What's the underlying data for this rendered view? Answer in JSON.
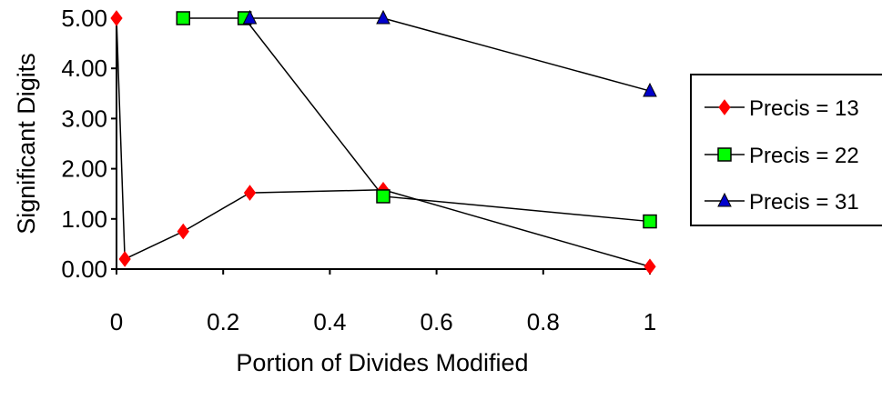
{
  "chart_data": {
    "type": "scatter",
    "title": "",
    "xlabel": "Portion of Divides Modified",
    "ylabel": "Significant Digits",
    "xlim": [
      0,
      1
    ],
    "ylim": [
      0,
      5
    ],
    "x_ticks": [
      "0",
      "0.2",
      "0.4",
      "0.6",
      "0.8",
      "1"
    ],
    "y_ticks": [
      "0.00",
      "1.00",
      "2.00",
      "3.00",
      "4.00",
      "5.00"
    ],
    "grid": false,
    "legend_position": "right",
    "series": [
      {
        "name": "Precis = 13",
        "marker": "diamond",
        "color": "#ff0000",
        "x": [
          0,
          0.0156,
          0.125,
          0.25,
          0.5,
          1
        ],
        "y": [
          5.0,
          0.2,
          0.75,
          1.52,
          1.58,
          0.05
        ]
      },
      {
        "name": "Precis = 22",
        "marker": "square",
        "color": "#00ff00",
        "x": [
          0.125,
          0.24,
          0.5,
          1
        ],
        "y": [
          5.0,
          5.0,
          1.45,
          0.95
        ]
      },
      {
        "name": "Precis = 31",
        "marker": "triangle",
        "color": "#0000cc",
        "x": [
          0.25,
          0.5,
          1
        ],
        "y": [
          5.0,
          5.0,
          3.55
        ]
      }
    ]
  }
}
